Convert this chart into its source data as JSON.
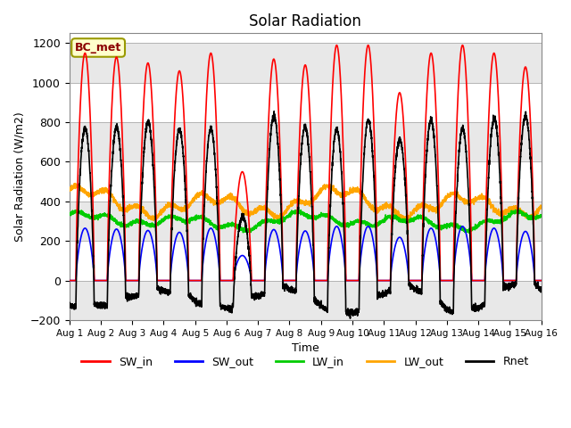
{
  "title": "Solar Radiation",
  "xlabel": "Time",
  "ylabel": "Solar Radiation (W/m2)",
  "ylim": [
    -200,
    1250
  ],
  "yticks": [
    -200,
    0,
    200,
    400,
    600,
    800,
    1000,
    1200
  ],
  "station_label": "BC_met",
  "legend": [
    "SW_in",
    "SW_out",
    "LW_in",
    "LW_out",
    "Rnet"
  ],
  "colors": {
    "SW_in": "#ff0000",
    "SW_out": "#0000ff",
    "LW_in": "#00cc00",
    "LW_out": "#ffa500",
    "Rnet": "#000000"
  },
  "n_days": 15,
  "background_color": "#ffffff",
  "band_color": "#e8e8e8",
  "sw_peaks": [
    1150,
    1130,
    1100,
    1060,
    1150,
    550,
    1120,
    1090,
    1190,
    1190,
    950,
    1150,
    1190,
    1150,
    1080
  ],
  "lw_in_base": 300,
  "lw_out_base": 390,
  "rnet_night": -100
}
